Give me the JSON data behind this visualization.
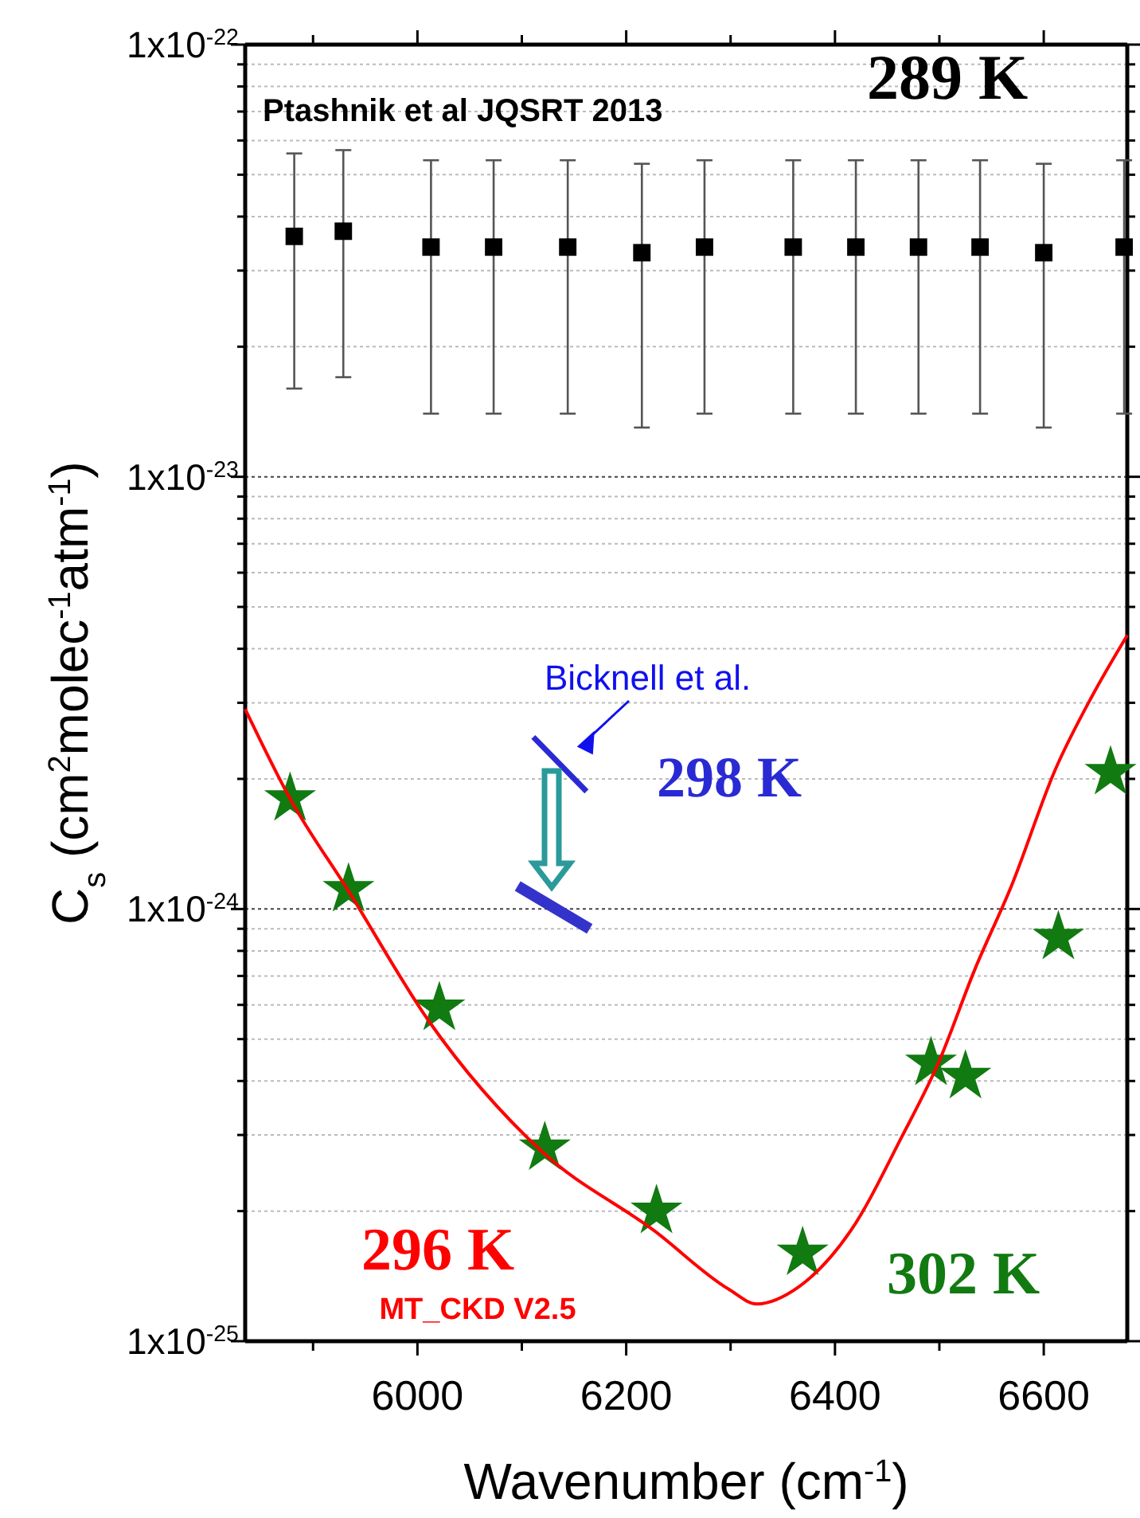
{
  "chart_data": {
    "type": "scatter",
    "xlabel": "Wavenumber (cm$^{-1}$)",
    "ylabel": "C$_{s}$ (cm$^{2}$molec$^{-1}$atm$^{-1}$)",
    "log": "y",
    "grid": "y",
    "xlim": [
      5835,
      6680
    ],
    "xticks": [
      {
        "value": 5900,
        "label": null
      },
      6000,
      {
        "value": 6100,
        "label": null
      },
      6200,
      {
        "value": 6300,
        "label": null
      },
      6400,
      {
        "value": 6500,
        "label": null
      },
      6600
    ],
    "ylim": [
      1e-25,
      1e-22
    ],
    "yticks": [
      {
        "value": 1e-25,
        "label": "1x10$^{-25}$"
      },
      {
        "value": 2e-25,
        "label": null
      },
      {
        "value": 3e-25,
        "label": null
      },
      {
        "value": 4e-25,
        "label": null
      },
      {
        "value": 5e-25,
        "label": null
      },
      {
        "value": 6e-25,
        "label": null
      },
      {
        "value": 7e-25,
        "label": null
      },
      {
        "value": 8e-25,
        "label": null
      },
      {
        "value": 9e-25,
        "label": null
      },
      {
        "value": 1e-24,
        "label": "1x10$^{-24}$"
      },
      {
        "value": 2e-24,
        "label": null
      },
      {
        "value": 3e-24,
        "label": null
      },
      {
        "value": 4e-24,
        "label": null
      },
      {
        "value": 5e-24,
        "label": null
      },
      {
        "value": 6e-24,
        "label": null
      },
      {
        "value": 7e-24,
        "label": null
      },
      {
        "value": 8e-24,
        "label": null
      },
      {
        "value": 9e-24,
        "label": null
      },
      {
        "value": 1e-23,
        "label": "1x10$^{-23}$"
      },
      {
        "value": 2e-23,
        "label": null
      },
      {
        "value": 3e-23,
        "label": null
      },
      {
        "value": 4e-23,
        "label": null
      },
      {
        "value": 5e-23,
        "label": null
      },
      {
        "value": 6e-23,
        "label": null
      },
      {
        "value": 7e-23,
        "label": null
      },
      {
        "value": 8e-23,
        "label": null
      },
      {
        "value": 9e-23,
        "label": null
      },
      {
        "value": 1e-22,
        "label": "1x10$^{-22}$"
      }
    ],
    "series": [
      {
        "name": "289 K",
        "marker": "square",
        "color": "#000000",
        "x": [
          5882,
          5929,
          6013,
          6073,
          6144,
          6215,
          6275,
          6360,
          6420,
          6480,
          6539,
          6600,
          6677
        ],
        "values": [
          3.6e-23,
          3.7e-23,
          3.4e-23,
          3.4e-23,
          3.4e-23,
          3.3e-23,
          3.4e-23,
          3.4e-23,
          3.4e-23,
          3.4e-23,
          3.4e-23,
          3.3e-23,
          3.4e-23
        ],
        "errors": [
          [
            1.6e-23,
            5.6e-23
          ],
          [
            1.7e-23,
            5.7e-23
          ],
          [
            1.4e-23,
            5.4e-23
          ],
          [
            1.4e-23,
            5.4e-23
          ],
          [
            1.4e-23,
            5.4e-23
          ],
          [
            1.3e-23,
            5.3e-23
          ],
          [
            1.4e-23,
            5.4e-23
          ],
          [
            1.4e-23,
            5.4e-23
          ],
          [
            1.4e-23,
            5.4e-23
          ],
          [
            1.4e-23,
            5.4e-23
          ],
          [
            1.4e-23,
            5.4e-23
          ],
          [
            1.3e-23,
            5.3e-23
          ],
          [
            1.4e-23,
            5.4e-23
          ]
        ]
      },
      {
        "name": "302 K",
        "marker": "star",
        "color": "#117a11",
        "x": [
          5878,
          5934,
          6021,
          6122,
          6229,
          6369,
          6492,
          6525,
          6614,
          6664
        ],
        "values": [
          1.8e-24,
          1.11e-24,
          5.9e-25,
          2.8e-25,
          2e-25,
          1.6e-25,
          4.4e-25,
          4.1e-25,
          8.6e-25,
          2.07e-24
        ]
      },
      {
        "name": "296 K",
        "type": "line",
        "marker": "none",
        "line_style": "solid",
        "color": "#ff0000",
        "x": [
          5835,
          5878,
          5934,
          6011,
          6119,
          6227,
          6298,
          6325,
          6366,
          6415,
          6464,
          6499,
          6534,
          6569,
          6611,
          6646,
          6680
        ],
        "values": [
          2.9e-24,
          1.8e-24,
          1.1e-24,
          5.5e-25,
          2.75e-25,
          1.8e-25,
          1.32e-25,
          1.22e-25,
          1.34e-25,
          1.8e-25,
          2.97e-25,
          4.4e-25,
          7.25e-25,
          1.13e-24,
          2.1e-24,
          3.1e-24,
          4.3e-24
        ]
      },
      {
        "name": "298 K",
        "type": "line",
        "marker": "none",
        "line_style": "solid",
        "color": "#2a2ad4",
        "x": [
          6111,
          6162
        ],
        "values": [
          2.5e-24,
          1.87e-24
        ]
      },
      {
        "type": "line",
        "marker": "none",
        "line_style": "solid",
        "color": "#3333cc",
        "x": [
          6096,
          6165
        ],
        "values": [
          1.13e-24,
          9e-25
        ]
      }
    ],
    "annotations": [
      "Ptashnik et al JQSRT 2013",
      "MT_CKD V2.5",
      "Bicknell et al."
    ]
  }
}
